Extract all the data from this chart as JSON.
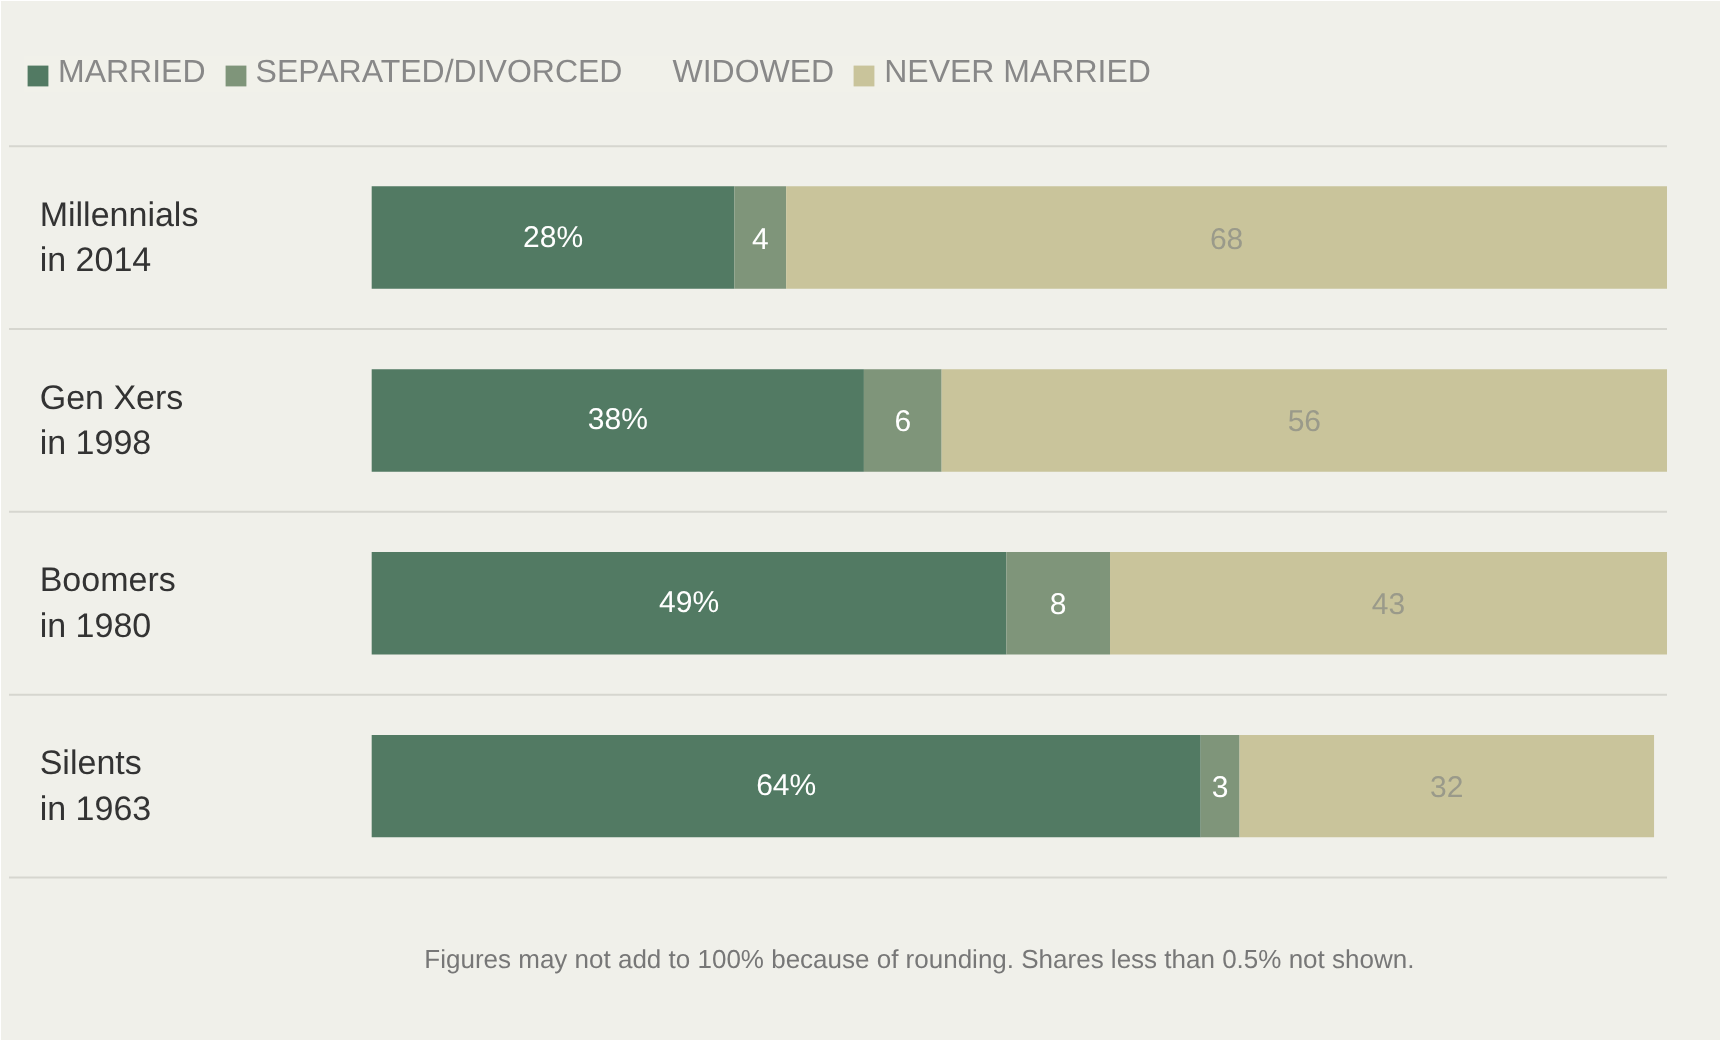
{
  "chart_data": {
    "type": "bar",
    "orientation": "horizontal",
    "stacked": true,
    "relative": false,
    "categories": [
      "Millennials\nin 2014",
      "Gen Xers\nin 1998",
      "Boomers\nin 1980",
      "Silents\nin 1963"
    ],
    "series": [
      {
        "name": "MARRIED",
        "color": "#527a63",
        "values": [
          28,
          38,
          49,
          64
        ],
        "value_labels": [
          "28%",
          "38%",
          "49%",
          "64%"
        ]
      },
      {
        "name": "SEPARATED/DIVORCED",
        "color": "#7f957a",
        "values": [
          4,
          6,
          8,
          3
        ],
        "value_labels": [
          "4",
          "6",
          "8",
          "3"
        ]
      },
      {
        "name": "WIDOWED",
        "color": "#a3ab84",
        "values": [
          null,
          null,
          null,
          null
        ],
        "value_labels": [
          null,
          null,
          null,
          null
        ]
      },
      {
        "name": "NEVER MARRIED",
        "color": "#c9c49b",
        "values": [
          68,
          56,
          43,
          32
        ],
        "value_labels": [
          "68",
          "56",
          "43",
          "32"
        ]
      }
    ],
    "xlim": [
      0,
      100
    ],
    "tick_labels": false,
    "grid": false,
    "legend": "top",
    "annotations": [
      "Figures may not add to 100% because of rounding. Shares less than 0.5% not shown."
    ]
  }
}
